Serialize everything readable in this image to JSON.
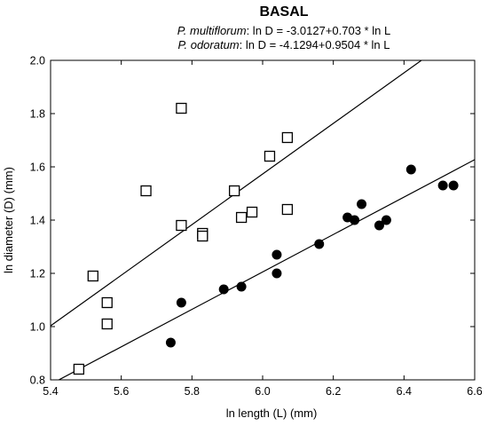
{
  "chart_data": {
    "type": "scatter",
    "title": "BASAL",
    "equations": [
      {
        "species": "P. multiflorum",
        "formula": ": ln D = -3.0127+0.703 * ln L"
      },
      {
        "species": "P. odoratum",
        "formula": ": ln D = -4.1294+0.9504 * ln L"
      }
    ],
    "xlabel": "ln length (L) (mm)",
    "ylabel": "ln diameter (D) (mm)",
    "xlim": [
      5.4,
      6.6
    ],
    "ylim": [
      0.8,
      2.0
    ],
    "xticks": [
      "5.4",
      "5.6",
      "5.8",
      "6.0",
      "6.2",
      "6.4",
      "6.6"
    ],
    "yticks": [
      "0.8",
      "1.0",
      "1.2",
      "1.4",
      "1.6",
      "1.8",
      "2.0"
    ],
    "grid": false,
    "series": [
      {
        "marker": "open-square",
        "x": [
          5.48,
          5.52,
          5.56,
          5.56,
          5.67,
          5.77,
          5.77,
          5.83,
          5.83,
          5.92,
          5.94,
          5.97,
          6.02,
          6.07,
          6.07
        ],
        "y": [
          0.84,
          1.19,
          1.09,
          1.01,
          1.51,
          1.38,
          1.82,
          1.35,
          1.34,
          1.51,
          1.41,
          1.43,
          1.64,
          1.71,
          1.44
        ]
      },
      {
        "marker": "filled-circle",
        "x": [
          5.74,
          5.77,
          5.89,
          5.94,
          6.04,
          6.04,
          6.16,
          6.24,
          6.26,
          6.28,
          6.33,
          6.35,
          6.42,
          6.51,
          6.54
        ],
        "y": [
          0.94,
          1.09,
          1.14,
          1.15,
          1.27,
          1.2,
          1.31,
          1.41,
          1.4,
          1.46,
          1.38,
          1.4,
          1.59,
          1.53,
          1.53
        ]
      }
    ],
    "fit_lines": [
      {
        "intercept": -3.0127,
        "slope": 0.703
      },
      {
        "intercept": -4.1294,
        "slope": 0.9504
      }
    ]
  }
}
